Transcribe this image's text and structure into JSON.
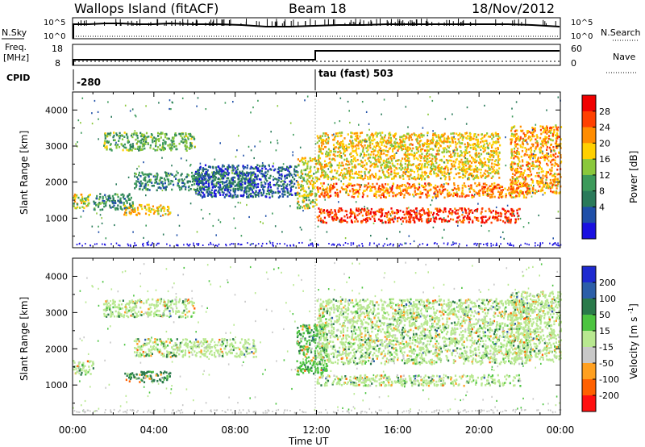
{
  "header": {
    "station": "Wallops Island (fitACF)",
    "beam": "Beam 18",
    "date": "18/Nov/2012"
  },
  "top_panels": {
    "nsky_label": "N.Sky",
    "nsearch_label": "N.Search",
    "freq_label_line1": "Freq.",
    "freq_label_line2": "[MHz]",
    "nave_label": "Nave",
    "cpid_label": "CPID",
    "noise_ticks": [
      "10^5",
      "10^0"
    ],
    "freq_ticks": [
      "18",
      "8"
    ],
    "nave_ticks": [
      "60",
      "0"
    ],
    "cpid_segments": [
      {
        "start_hour": 0.0,
        "label": "-280"
      },
      {
        "start_hour": 12.0,
        "label": "tau (fast) 503"
      }
    ]
  },
  "chart_data": [
    {
      "type": "heatmap",
      "title": "Power",
      "xlabel": "Time UT",
      "ylabel": "Slant Range [km]",
      "colorbar_label": "Power [dB]",
      "x_ticks": [
        "00:00",
        "04:00",
        "08:00",
        "12:00",
        "16:00",
        "20:00",
        "00:00"
      ],
      "xlim_hours": [
        0,
        24
      ],
      "ylim_km": [
        180,
        4500
      ],
      "y_ticks": [
        1000,
        2000,
        3000,
        4000
      ],
      "colorbar_ticks": [
        "28",
        "24",
        "20",
        "16",
        "12",
        "8",
        "4"
      ],
      "colorbar_colors": [
        "#f00000",
        "#ff4000",
        "#ff8c00",
        "#ffd000",
        "#8ac83c",
        "#3c9a5a",
        "#2a7a5a",
        "#1f4fa8",
        "#1a10e0"
      ],
      "echo_regions": [
        {
          "t": [
            0.0,
            0.9
          ],
          "r": [
            1300,
            1700
          ],
          "power_db": 18
        },
        {
          "t": [
            1.0,
            3.0
          ],
          "r": [
            1250,
            1700
          ],
          "power_db": 10
        },
        {
          "t": [
            1.5,
            6.0
          ],
          "r": [
            2900,
            3400
          ],
          "power_db": 14
        },
        {
          "t": [
            2.5,
            4.8
          ],
          "r": [
            1100,
            1400
          ],
          "power_db": 20
        },
        {
          "t": [
            3.0,
            9.0
          ],
          "r": [
            1800,
            2300
          ],
          "power_db": 10
        },
        {
          "t": [
            6.0,
            11.0
          ],
          "r": [
            1600,
            2500
          ],
          "power_db": 6
        },
        {
          "t": [
            11.0,
            12.0
          ],
          "r": [
            1300,
            2700
          ],
          "power_db": 18
        },
        {
          "t": [
            12.0,
            22.0
          ],
          "r": [
            900,
            1300
          ],
          "power_db": 28
        },
        {
          "t": [
            12.0,
            22.5
          ],
          "r": [
            1600,
            2000
          ],
          "power_db": 24
        },
        {
          "t": [
            12.0,
            21.0
          ],
          "r": [
            2100,
            3400
          ],
          "power_db": 20
        },
        {
          "t": [
            21.5,
            24.0
          ],
          "r": [
            1700,
            3600
          ],
          "power_db": 22
        }
      ]
    },
    {
      "type": "heatmap",
      "title": "Velocity",
      "xlabel": "Time UT",
      "ylabel": "Slant Range [km]",
      "colorbar_label": "Velocity [m s^-1]",
      "x_ticks": [
        "00:00",
        "04:00",
        "08:00",
        "12:00",
        "16:00",
        "20:00",
        "00:00"
      ],
      "xlim_hours": [
        0,
        24
      ],
      "ylim_km": [
        180,
        4500
      ],
      "y_ticks": [
        1000,
        2000,
        3000,
        4000
      ],
      "colorbar_ticks": [
        "200",
        "100",
        "50",
        "15",
        "-15",
        "-50",
        "-100",
        "-200"
      ],
      "colorbar_colors": [
        "#1e2ad0",
        "#2c5ea8",
        "#2a7a4a",
        "#4cc440",
        "#b8e890",
        "#c8c8c8",
        "#ffa020",
        "#ff6000",
        "#ff1010"
      ],
      "echo_regions": [
        {
          "t": [
            0.0,
            1.0
          ],
          "r": [
            1300,
            1700
          ],
          "velocity": 0
        },
        {
          "t": [
            1.5,
            6.0
          ],
          "r": [
            2900,
            3400
          ],
          "velocity": 0
        },
        {
          "t": [
            2.5,
            4.8
          ],
          "r": [
            1100,
            1400
          ],
          "velocity": 60
        },
        {
          "t": [
            3.0,
            9.0
          ],
          "r": [
            1800,
            2300
          ],
          "velocity": 0
        },
        {
          "t": [
            11.0,
            12.5
          ],
          "r": [
            1300,
            2700
          ],
          "velocity": 40
        },
        {
          "t": [
            12.0,
            22.0
          ],
          "r": [
            1000,
            1300
          ],
          "velocity": 0
        },
        {
          "t": [
            12.0,
            22.5
          ],
          "r": [
            1600,
            3400
          ],
          "velocity": 0
        },
        {
          "t": [
            21.5,
            24.0
          ],
          "r": [
            1700,
            3600
          ],
          "velocity": 0
        }
      ]
    }
  ]
}
